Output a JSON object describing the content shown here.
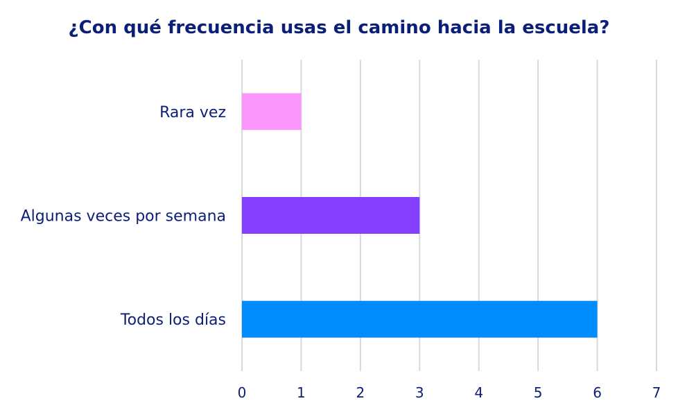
{
  "chart_data": {
    "type": "bar",
    "orientation": "horizontal",
    "title": "¿Con qué frecuencia usas el camino hacia la escuela?",
    "categories": [
      "Rara vez",
      "Algunas veces por semana",
      "Todos los días"
    ],
    "values": [
      1,
      3,
      6
    ],
    "colors": [
      "#f995fb",
      "#843efe",
      "#008cfd"
    ],
    "xlim": [
      0,
      7
    ],
    "ticks": [
      "0",
      "1",
      "2",
      "3",
      "4",
      "5",
      "6",
      "7"
    ],
    "grid": true,
    "legend": "none"
  }
}
